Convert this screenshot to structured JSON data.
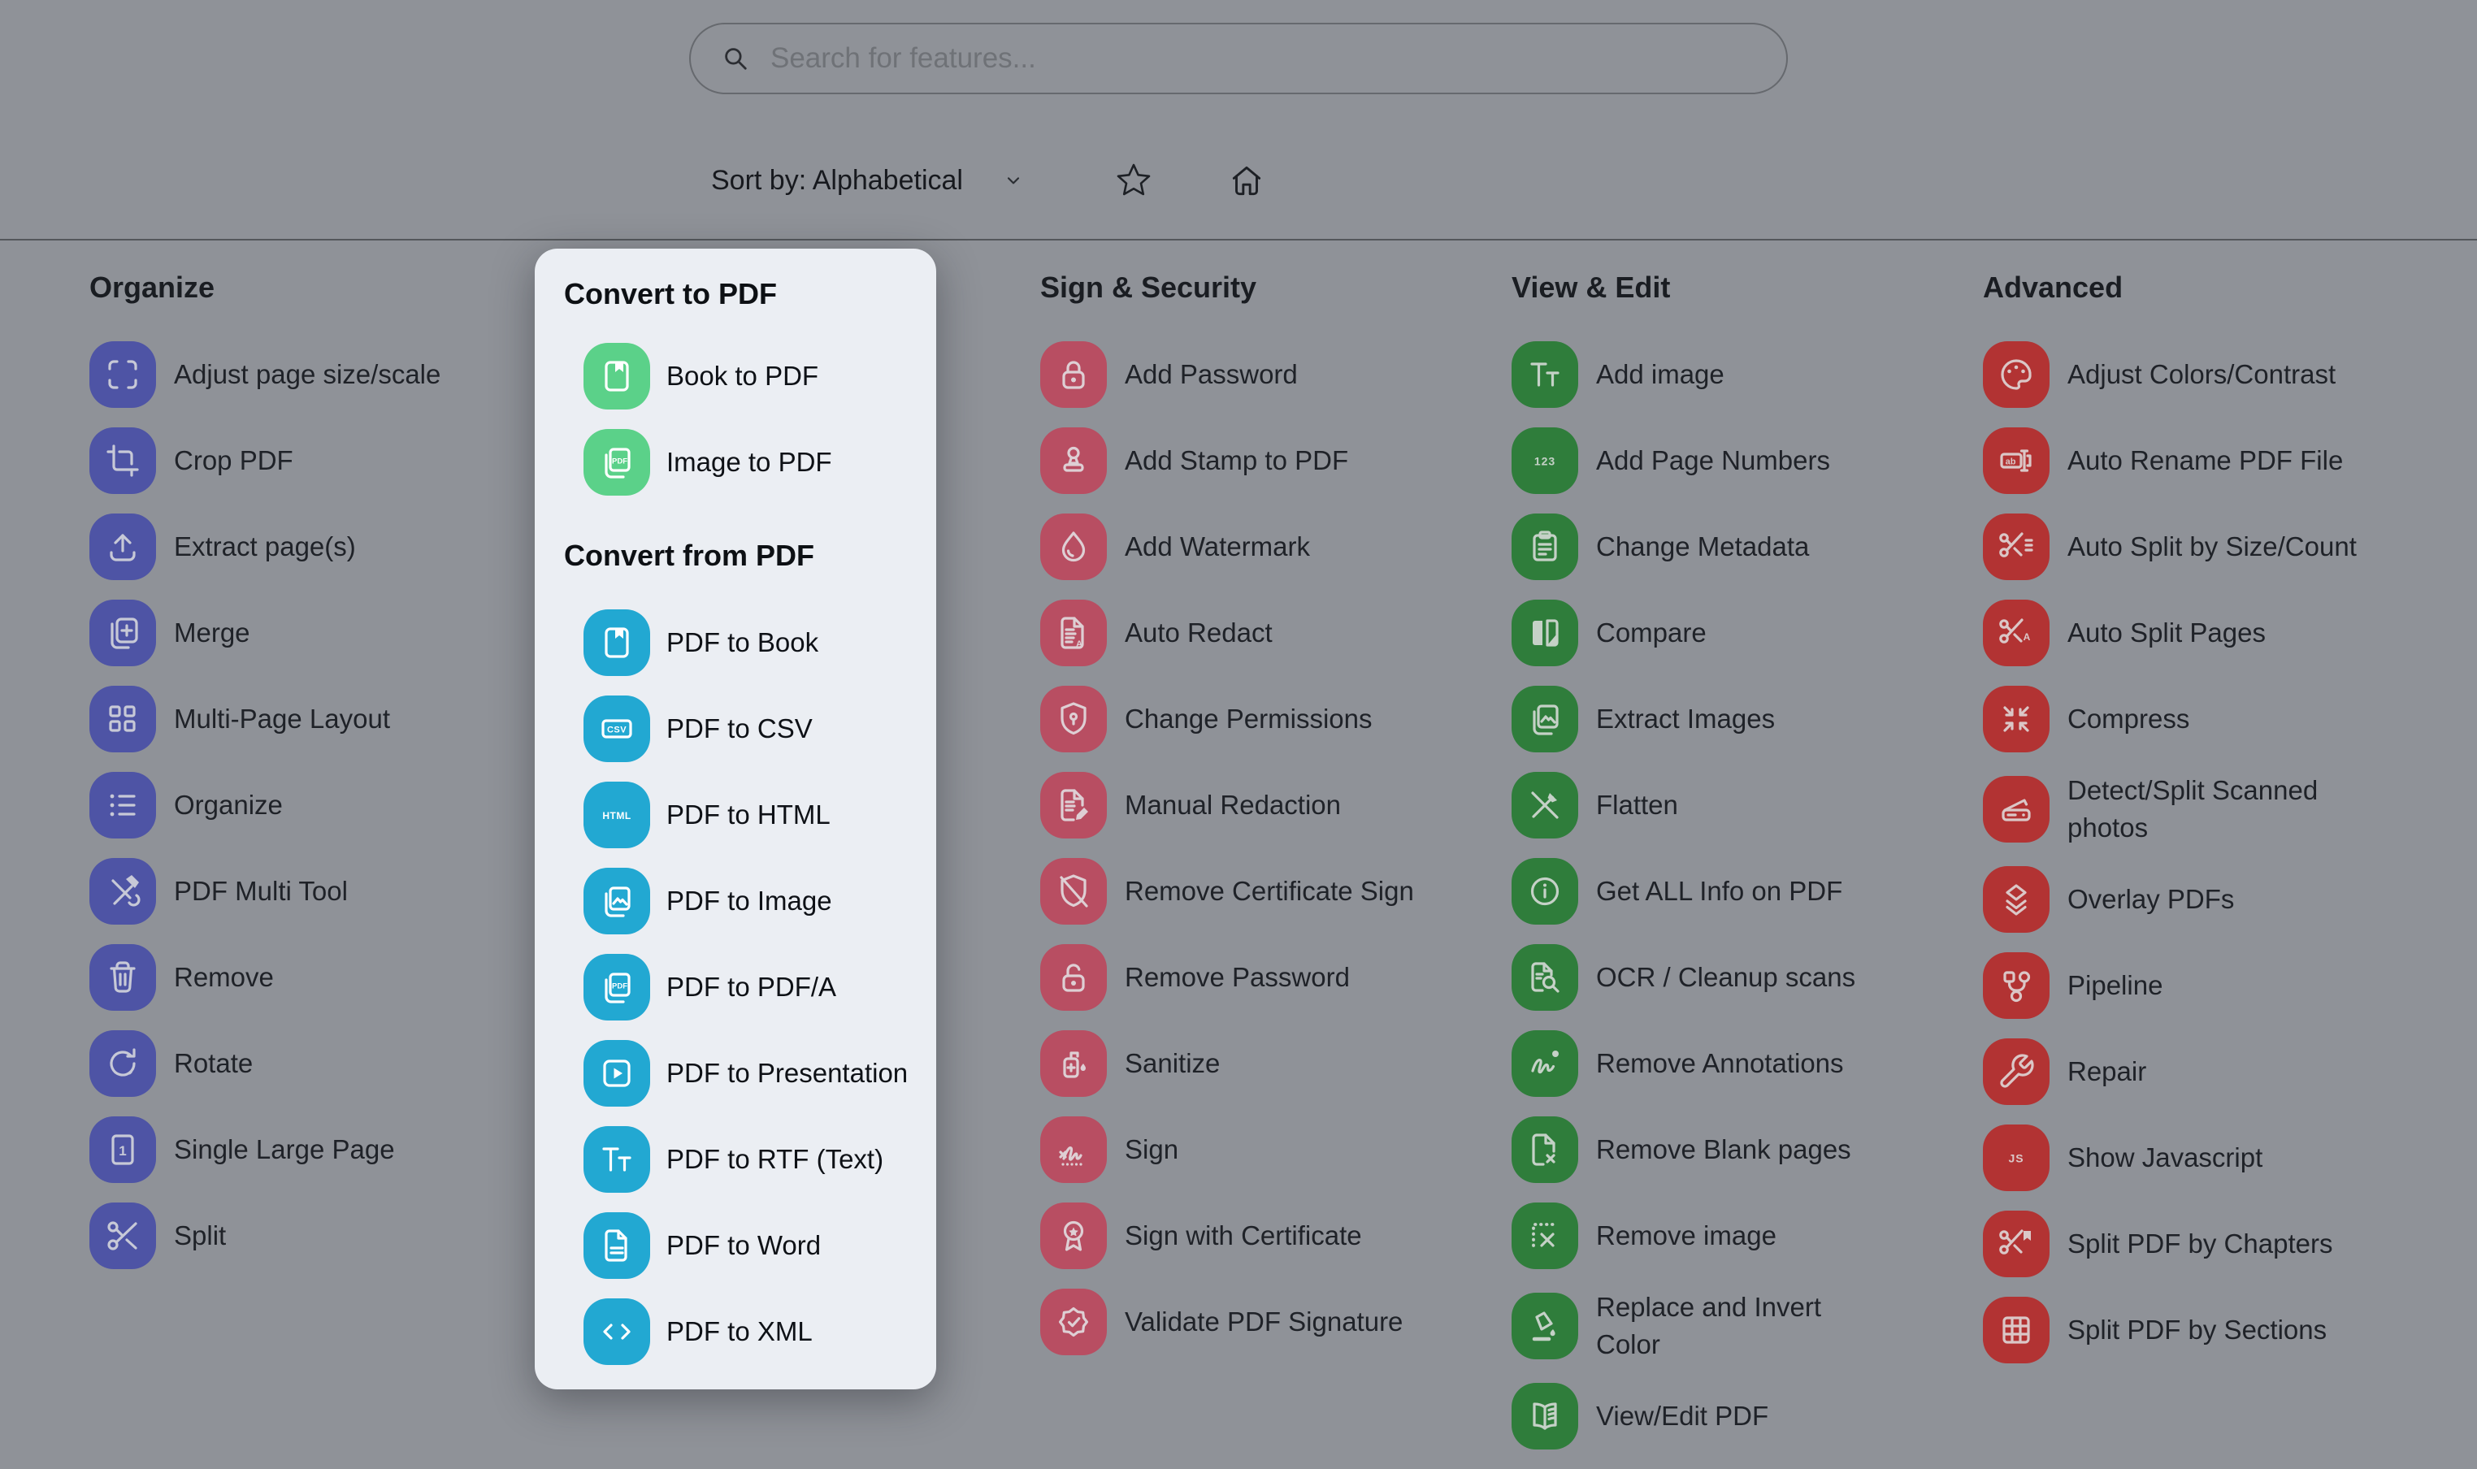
{
  "toolbar": {
    "search_placeholder": "Search for features...",
    "sort_label": "Sort by: Alphabetical"
  },
  "colors": {
    "page_background": "#8f9298",
    "panel_background": "#ebeef3",
    "divider": "#54575b",
    "organize_accent": "#4e54a5",
    "sign_accent": "#b84e62",
    "view_accent": "#2f7d3b",
    "advanced_accent": "#b23333",
    "convert_to_pdf_accent": "#5bd189",
    "convert_from_pdf_accent": "#22a8d2"
  },
  "columns": [
    {
      "id": "organize",
      "title": "Organize",
      "accent": "#4e54a5",
      "glyph": "#c7c9d7",
      "items": [
        {
          "label": "Adjust page size/scale",
          "icon": "page-scale-icon"
        },
        {
          "label": "Crop PDF",
          "icon": "crop-icon"
        },
        {
          "label": "Extract page(s)",
          "icon": "extract-icon"
        },
        {
          "label": "Merge",
          "icon": "merge-icon"
        },
        {
          "label": "Multi-Page Layout",
          "icon": "multi-page-icon"
        },
        {
          "label": "Organize",
          "icon": "organize-list-icon"
        },
        {
          "label": "PDF Multi Tool",
          "icon": "multi-tool-icon"
        },
        {
          "label": "Remove",
          "icon": "trash-icon"
        },
        {
          "label": "Rotate",
          "icon": "rotate-icon"
        },
        {
          "label": "Single Large Page",
          "icon": "single-page-icon"
        },
        {
          "label": "Split",
          "icon": "scissors-icon"
        }
      ]
    },
    {
      "id": "sign",
      "title": "Sign & Security",
      "accent": "#b84e62",
      "glyph": "#decfd4",
      "items": [
        {
          "label": "Add Password",
          "icon": "lock-icon"
        },
        {
          "label": "Add Stamp to PDF",
          "icon": "stamp-icon"
        },
        {
          "label": "Add Watermark",
          "icon": "droplet-icon"
        },
        {
          "label": "Auto Redact",
          "icon": "auto-redact-icon"
        },
        {
          "label": "Change Permissions",
          "icon": "shield-keyhole-icon"
        },
        {
          "label": "Manual Redaction",
          "icon": "doc-pencil-icon"
        },
        {
          "label": "Remove Certificate Sign",
          "icon": "shield-slash-icon"
        },
        {
          "label": "Remove Password",
          "icon": "lock-open-icon"
        },
        {
          "label": "Sanitize",
          "icon": "sanitizer-icon"
        },
        {
          "label": "Sign",
          "icon": "signature-icon"
        },
        {
          "label": "Sign with Certificate",
          "icon": "rosette-icon"
        },
        {
          "label": "Validate PDF Signature",
          "icon": "badge-check-icon"
        }
      ]
    },
    {
      "id": "view",
      "title": "View & Edit",
      "accent": "#2f7d3b",
      "glyph": "#c5d1c7",
      "items": [
        {
          "label": "Add image",
          "icon": "text-tt-icon"
        },
        {
          "label": "Add Page Numbers",
          "icon": "numbers-123-icon"
        },
        {
          "label": "Change Metadata",
          "icon": "clipboard-icon"
        },
        {
          "label": "Compare",
          "icon": "compare-icon"
        },
        {
          "label": "Extract Images",
          "icon": "image-stack-icon"
        },
        {
          "label": "Flatten",
          "icon": "flatten-icon"
        },
        {
          "label": "Get ALL Info on PDF",
          "icon": "info-icon"
        },
        {
          "label": "OCR / Cleanup scans",
          "icon": "doc-search-icon"
        },
        {
          "label": "Remove Annotations",
          "icon": "scribble-icon"
        },
        {
          "label": "Remove Blank pages",
          "icon": "page-x-icon"
        },
        {
          "label": "Remove image",
          "icon": "image-x-icon"
        },
        {
          "label": "Replace and Invert Color",
          "icon": "paint-pour-icon"
        },
        {
          "label": "View/Edit PDF",
          "icon": "open-book-icon"
        }
      ]
    },
    {
      "id": "advanced",
      "title": "Advanced",
      "accent": "#b23333",
      "glyph": "#dbc7c7",
      "items": [
        {
          "label": "Adjust Colors/Contrast",
          "icon": "palette-icon"
        },
        {
          "label": "Auto Rename PDF File",
          "icon": "rename-icon"
        },
        {
          "label": "Auto Split by Size/Count",
          "icon": "scissors-lines-icon"
        },
        {
          "label": "Auto Split Pages",
          "icon": "scissors-a-icon"
        },
        {
          "label": "Compress",
          "icon": "compress-icon"
        },
        {
          "label": "Detect/Split Scanned photos",
          "icon": "scanner-icon"
        },
        {
          "label": "Overlay PDFs",
          "icon": "layers-icon"
        },
        {
          "label": "Pipeline",
          "icon": "pipeline-icon"
        },
        {
          "label": "Repair",
          "icon": "wrench-icon"
        },
        {
          "label": "Show Javascript",
          "icon": "js-icon"
        },
        {
          "label": "Split PDF by Chapters",
          "icon": "scissors-bookmark-icon"
        },
        {
          "label": "Split PDF by Sections",
          "icon": "grid-icon"
        }
      ]
    }
  ],
  "panel": {
    "sections": [
      {
        "title": "Convert to PDF",
        "accent": "#5bd189",
        "glyph": "#ffffff",
        "items": [
          {
            "label": "Book to PDF",
            "icon": "book-icon"
          },
          {
            "label": "Image to PDF",
            "icon": "doc-pdf-stack-icon"
          }
        ]
      },
      {
        "title": "Convert from PDF",
        "accent": "#22a8d2",
        "glyph": "#ffffff",
        "items": [
          {
            "label": "PDF to Book",
            "icon": "book-icon"
          },
          {
            "label": "PDF to CSV",
            "icon": "csv-icon"
          },
          {
            "label": "PDF to HTML",
            "icon": "html-icon"
          },
          {
            "label": "PDF to Image",
            "icon": "image-stack-icon"
          },
          {
            "label": "PDF to PDF/A",
            "icon": "doc-pdf-stack-icon"
          },
          {
            "label": "PDF to Presentation",
            "icon": "play-icon"
          },
          {
            "label": "PDF to RTF (Text)",
            "icon": "text-tt-icon"
          },
          {
            "label": "PDF to Word",
            "icon": "doc-lines-icon"
          },
          {
            "label": "PDF to XML",
            "icon": "code-icon"
          }
        ]
      }
    ]
  }
}
